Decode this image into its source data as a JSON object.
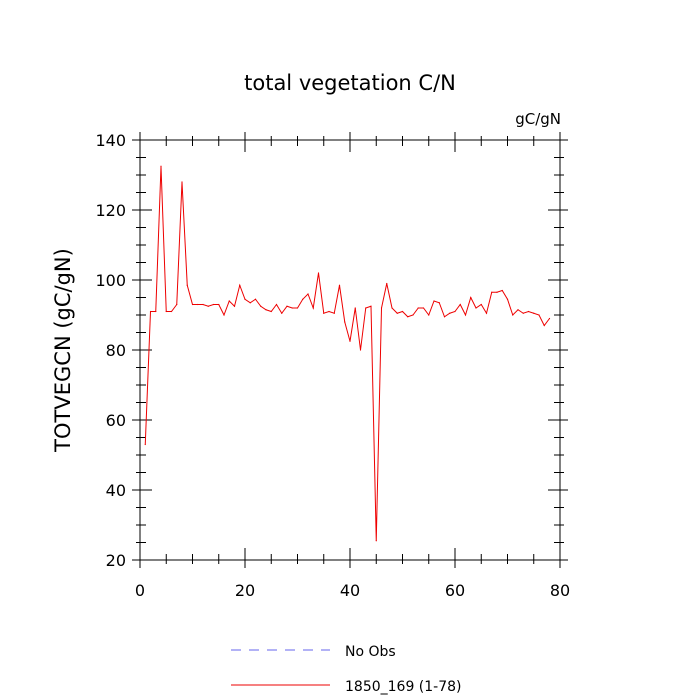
{
  "chart_data": {
    "type": "line",
    "title": "total vegetation C/N",
    "units_label": "gC/gN",
    "ylabel": "TOTVEGCN  (gC/gN)",
    "xlabel": "",
    "xlim": [
      0,
      80
    ],
    "ylim": [
      20,
      140
    ],
    "x_ticks": [
      0,
      20,
      40,
      60,
      80
    ],
    "y_ticks": [
      20,
      40,
      60,
      80,
      100,
      120,
      140
    ],
    "grid": false,
    "legend_position": "bottom",
    "colors": {
      "obs": "#6666ee",
      "model": "#ee0000"
    },
    "legend": [
      {
        "name": "No Obs",
        "style": "dashed",
        "color": "#6666ee"
      },
      {
        "name": "1850_169 (1-78)",
        "style": "solid",
        "color": "#ee0000"
      }
    ],
    "series": [
      {
        "name": "1850_169 (1-78)",
        "x": [
          1,
          2,
          3,
          4,
          5,
          6,
          7,
          8,
          9,
          10,
          11,
          12,
          13,
          14,
          15,
          16,
          17,
          18,
          19,
          20,
          21,
          22,
          23,
          24,
          25,
          26,
          27,
          28,
          29,
          30,
          31,
          32,
          33,
          34,
          35,
          36,
          37,
          38,
          39,
          40,
          41,
          42,
          43,
          44,
          45,
          46,
          47,
          48,
          49,
          50,
          51,
          52,
          53,
          54,
          55,
          56,
          57,
          58,
          59,
          60,
          61,
          62,
          63,
          64,
          65,
          66,
          67,
          68,
          69,
          70,
          71,
          72,
          73,
          74,
          75,
          76,
          77,
          78
        ],
        "y": [
          53,
          91,
          91,
          132.5,
          91,
          91,
          93,
          128,
          98.5,
          93,
          93,
          93,
          92.5,
          93,
          93,
          90,
          94,
          92.5,
          98.5,
          94.5,
          93.5,
          94.5,
          92.5,
          91.5,
          91,
          93,
          90.5,
          92.5,
          92,
          92,
          94.5,
          96,
          92,
          102,
          90.5,
          91,
          90.5,
          98.5,
          88,
          82.5,
          92,
          80,
          92,
          92.5,
          25.5,
          92,
          99,
          92,
          90.5,
          91,
          89.5,
          90,
          92,
          92,
          90,
          94,
          93.5,
          89.5,
          90.5,
          91,
          93,
          90,
          95,
          92,
          93,
          90.5,
          96.5,
          96.5,
          97,
          94.5,
          90,
          91.5,
          90.5,
          91,
          90.5,
          90,
          87,
          89
        ]
      }
    ]
  }
}
